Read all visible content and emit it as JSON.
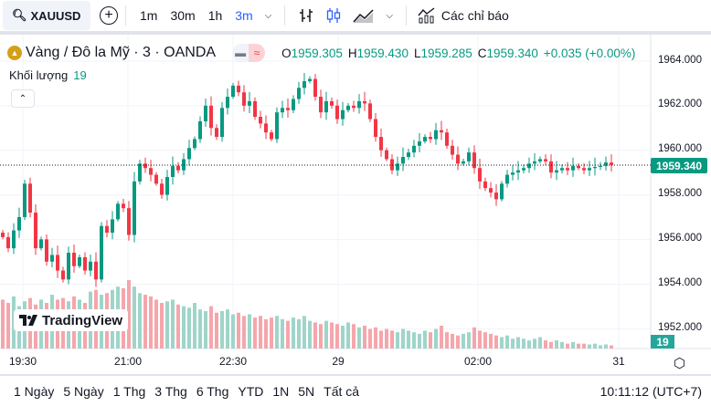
{
  "toolbar": {
    "symbol": "XAUUSD",
    "timeframes": [
      "1m",
      "30m",
      "1h",
      "3m"
    ],
    "active_timeframe": "3m",
    "indicators_label": "Các chỉ báo"
  },
  "legend": {
    "title": "Vàng / Đô la Mỹ · 3 · OANDA",
    "o_label": "O",
    "o": "1959.305",
    "h_label": "H",
    "h": "1959.430",
    "l_label": "L",
    "l": "1959.285",
    "c_label": "C",
    "c": "1959.340",
    "change": "+0.035 (+0.00%)",
    "volume_label": "Khối lượng",
    "volume": "19"
  },
  "colors": {
    "up": "#089981",
    "down": "#f23645",
    "vol_up": "#9fd5c9",
    "vol_down": "#f5a6ab",
    "accent": "#2962ff"
  },
  "price_axis": {
    "ticks": [
      "1964.000",
      "1962.000",
      "1960.000",
      "1958.000",
      "1956.000",
      "1954.000",
      "1952.000"
    ],
    "current_price": "1959.340",
    "current_volume": "19",
    "min": 1952,
    "max": 1964
  },
  "time_axis": {
    "labels": [
      "19:30",
      "21:00",
      "22:30",
      "29",
      "02:00",
      "31"
    ]
  },
  "logo": "TradingView",
  "chart_data": {
    "type": "candlestick",
    "start_open": 1956.3,
    "closes": [
      1956.1,
      1955.6,
      1956.4,
      1957.0,
      1958.5,
      1957.2,
      1955.6,
      1956.0,
      1955.0,
      1955.3,
      1954.6,
      1954.2,
      1955.4,
      1954.8,
      1955.2,
      1954.6,
      1955.0,
      1954.2,
      1956.6,
      1956.3,
      1956.9,
      1957.6,
      1957.4,
      1956.2,
      1958.6,
      1959.4,
      1959.2,
      1958.9,
      1958.5,
      1958.0,
      1958.8,
      1959.3,
      1959.1,
      1959.6,
      1960.1,
      1960.5,
      1961.3,
      1962.0,
      1961.0,
      1960.6,
      1961.9,
      1962.4,
      1962.9,
      1962.6,
      1962.0,
      1962.2,
      1961.5,
      1961.2,
      1960.8,
      1960.5,
      1961.7,
      1961.9,
      1961.8,
      1962.3,
      1962.8,
      1963.1,
      1963.2,
      1962.4,
      1961.7,
      1962.2,
      1962.0,
      1961.4,
      1961.8,
      1962.0,
      1961.9,
      1962.2,
      1962.1,
      1961.4,
      1960.6,
      1960.0,
      1959.6,
      1959.1,
      1959.4,
      1959.7,
      1959.9,
      1960.2,
      1960.4,
      1960.6,
      1960.5,
      1960.9,
      1960.8,
      1960.2,
      1959.8,
      1959.4,
      1959.5,
      1959.9,
      1959.2,
      1958.6,
      1958.3,
      1958.1,
      1957.8,
      1958.5,
      1958.9,
      1959.0,
      1959.1,
      1959.2,
      1959.4,
      1959.5,
      1959.6,
      1959.5,
      1959.0,
      1959.1,
      1959.2,
      1959.1,
      1959.3,
      1959.2,
      1959.1,
      1959.2,
      1959.25,
      1959.3,
      1959.45,
      1959.34
    ],
    "volumes": [
      300,
      280,
      320,
      260,
      290,
      310,
      270,
      300,
      280,
      330,
      300,
      310,
      290,
      320,
      300,
      280,
      350,
      360,
      330,
      340,
      360,
      380,
      370,
      420,
      380,
      340,
      330,
      320,
      300,
      280,
      290,
      300,
      270,
      260,
      250,
      280,
      240,
      230,
      260,
      220,
      230,
      240,
      210,
      220,
      200,
      210,
      190,
      200,
      180,
      190,
      200,
      180,
      170,
      190,
      180,
      200,
      170,
      160,
      150,
      170,
      160,
      150,
      140,
      160,
      150,
      130,
      140,
      120,
      130,
      110,
      120,
      110,
      100,
      120,
      110,
      100,
      90,
      110,
      100,
      120,
      140,
      100,
      90,
      80,
      90,
      100,
      130,
      110,
      100,
      90,
      80,
      70,
      80,
      60,
      70,
      60,
      50,
      60,
      70,
      50,
      40,
      50,
      40,
      30,
      40,
      30,
      30,
      25,
      30,
      20,
      25,
      19
    ]
  }
}
